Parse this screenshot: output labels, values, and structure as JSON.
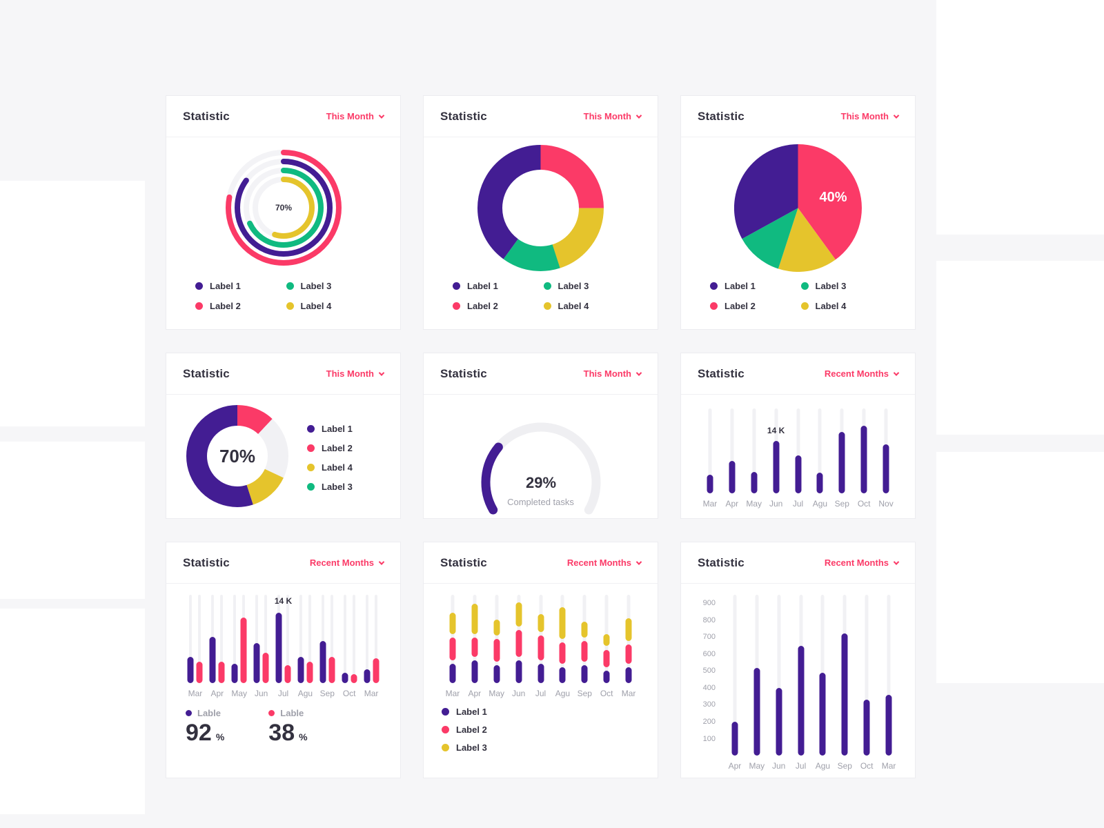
{
  "palette": {
    "purple": "#431D93",
    "pink": "#FB3A67",
    "green": "#10BA80",
    "yellow": "#E5C42C",
    "accent": "#FB3A67",
    "track": "#F1F1F4"
  },
  "cards": [
    {
      "title": "Statistic",
      "filter_label": "This Month",
      "legend": [
        {
          "label": "Label 1",
          "color": "#431D93"
        },
        {
          "label": "Label 3",
          "color": "#10BA80"
        },
        {
          "label": "Label 2",
          "color": "#FB3A67"
        },
        {
          "label": "Label 4",
          "color": "#E5C42C"
        }
      ]
    },
    {
      "title": "Statistic",
      "filter_label": "This Month",
      "legend": [
        {
          "label": "Label 1",
          "color": "#431D93"
        },
        {
          "label": "Label 3",
          "color": "#10BA80"
        },
        {
          "label": "Label 2",
          "color": "#FB3A67"
        },
        {
          "label": "Label 4",
          "color": "#E5C42C"
        }
      ]
    },
    {
      "title": "Statistic",
      "filter_label": "This Month",
      "legend": [
        {
          "label": "Label 1",
          "color": "#431D93"
        },
        {
          "label": "Label 3",
          "color": "#10BA80"
        },
        {
          "label": "Label 2",
          "color": "#FB3A67"
        },
        {
          "label": "Label 4",
          "color": "#E5C42C"
        }
      ]
    },
    {
      "title": "Statistic",
      "filter_label": "This Month",
      "legend": [
        {
          "label": "Label 1",
          "color": "#431D93"
        },
        {
          "label": "Label 2",
          "color": "#FB3A67"
        },
        {
          "label": "Label 4",
          "color": "#E5C42C"
        },
        {
          "label": "Label 3",
          "color": "#10BA80"
        }
      ]
    },
    {
      "title": "Statistic",
      "filter_label": "This Month"
    },
    {
      "title": "Statistic",
      "filter_label": "Recent Months"
    },
    {
      "title": "Statistic",
      "filter_label": "Recent Months",
      "stats": [
        {
          "label": "Lable",
          "value": "92",
          "unit": "%",
          "color": "#431D93"
        },
        {
          "label": "Lable",
          "value": "38",
          "unit": "%",
          "color": "#FB3A67"
        }
      ]
    },
    {
      "title": "Statistic",
      "filter_label": "Recent Months",
      "legend": [
        {
          "label": "Label 1",
          "color": "#431D93"
        },
        {
          "label": "Label 2",
          "color": "#FB3A67"
        },
        {
          "label": "Label 3",
          "color": "#E5C42C"
        }
      ]
    },
    {
      "title": "Statistic",
      "filter_label": "Recent Months"
    }
  ],
  "chart_data": [
    {
      "type": "radial-progress",
      "center_label": "70%",
      "rings": [
        {
          "name": "Label 2",
          "color": "#FB3A67",
          "value": 78
        },
        {
          "name": "Label 1",
          "color": "#431D93",
          "value": 85
        },
        {
          "name": "Label 3",
          "color": "#10BA80",
          "value": 68
        },
        {
          "name": "Label 4",
          "color": "#E5C42C",
          "value": 55
        }
      ]
    },
    {
      "type": "donut",
      "diameter": 185,
      "thickness": 36,
      "segments": [
        {
          "name": "Label 2",
          "color": "#FB3A67",
          "value": 25
        },
        {
          "name": "Label 4",
          "color": "#E5C42C",
          "value": 20
        },
        {
          "name": "Label 3",
          "color": "#10BA80",
          "value": 15
        },
        {
          "name": "Label 1",
          "color": "#431D93",
          "value": 40
        }
      ]
    },
    {
      "type": "pie",
      "label_text": "40%",
      "segments": [
        {
          "name": "Label 2",
          "color": "#FB3A67",
          "value": 40
        },
        {
          "name": "Label 4",
          "color": "#E5C42C",
          "value": 15
        },
        {
          "name": "Label 3",
          "color": "#10BA80",
          "value": 12
        },
        {
          "name": "Label 1",
          "color": "#431D93",
          "value": 33
        }
      ]
    },
    {
      "type": "donut",
      "diameter": 150,
      "thickness": 30,
      "center_label": "70%",
      "segments": [
        {
          "name": "Label 2",
          "color": "#FB3A67",
          "value": 12
        },
        {
          "name": "rest",
          "color": "#F1F1F4",
          "value": 20
        },
        {
          "name": "Label 4",
          "color": "#E5C42C",
          "value": 13
        },
        {
          "name": "Label 1",
          "color": "#431D93",
          "value": 55
        }
      ]
    },
    {
      "type": "gauge",
      "value": 29,
      "max": 100,
      "value_label": "29%",
      "caption": "Completed tasks",
      "color": "#431D93"
    },
    {
      "type": "bar",
      "color": "#431D93",
      "ylim": [
        0,
        100
      ],
      "categories": [
        "Mar",
        "Apr",
        "May",
        "Jun",
        "Jul",
        "Agu",
        "Sep",
        "Oct",
        "Nov"
      ],
      "values": [
        22,
        38,
        25,
        62,
        45,
        24,
        72,
        80,
        58
      ],
      "annotation": {
        "index": 3,
        "text": "14 K"
      }
    },
    {
      "type": "grouped-bar",
      "ylim": [
        0,
        100
      ],
      "categories": [
        "Mar",
        "Apr",
        "May",
        "Jun",
        "Jul",
        "Agu",
        "Sep",
        "Oct",
        "Mar"
      ],
      "series": [
        {
          "name": "Lable",
          "color": "#431D93",
          "values": [
            30,
            52,
            22,
            45,
            80,
            30,
            48,
            12,
            16
          ]
        },
        {
          "name": "Lable",
          "color": "#FB3A67",
          "values": [
            24,
            24,
            74,
            34,
            20,
            24,
            30,
            10,
            28
          ]
        }
      ],
      "annotation": {
        "index": 4,
        "text": "14 K"
      }
    },
    {
      "type": "stacked-bar",
      "ylim": [
        0,
        100
      ],
      "categories": [
        "Mar",
        "Apr",
        "May",
        "Jun",
        "Jul",
        "Agu",
        "Sep",
        "Oct",
        "Mar"
      ],
      "series": [
        {
          "name": "Label 1",
          "color": "#431D93",
          "values": [
            22,
            26,
            20,
            26,
            22,
            18,
            20,
            14,
            18
          ]
        },
        {
          "name": "Label 2",
          "color": "#FB3A67",
          "values": [
            26,
            22,
            26,
            30,
            28,
            24,
            24,
            20,
            22
          ]
        },
        {
          "name": "Label 3",
          "color": "#E5C42C",
          "values": [
            24,
            34,
            18,
            28,
            20,
            36,
            18,
            14,
            26
          ]
        }
      ]
    },
    {
      "type": "bar",
      "color": "#431D93",
      "ylim": [
        0,
        950
      ],
      "categories": [
        "Apr",
        "May",
        "Jun",
        "Jul",
        "Agu",
        "Sep",
        "Oct",
        "Mar"
      ],
      "values": [
        200,
        520,
        400,
        650,
        490,
        720,
        330,
        360
      ],
      "y_ticks": [
        900,
        800,
        700,
        600,
        500,
        400,
        300,
        200,
        100
      ]
    }
  ]
}
